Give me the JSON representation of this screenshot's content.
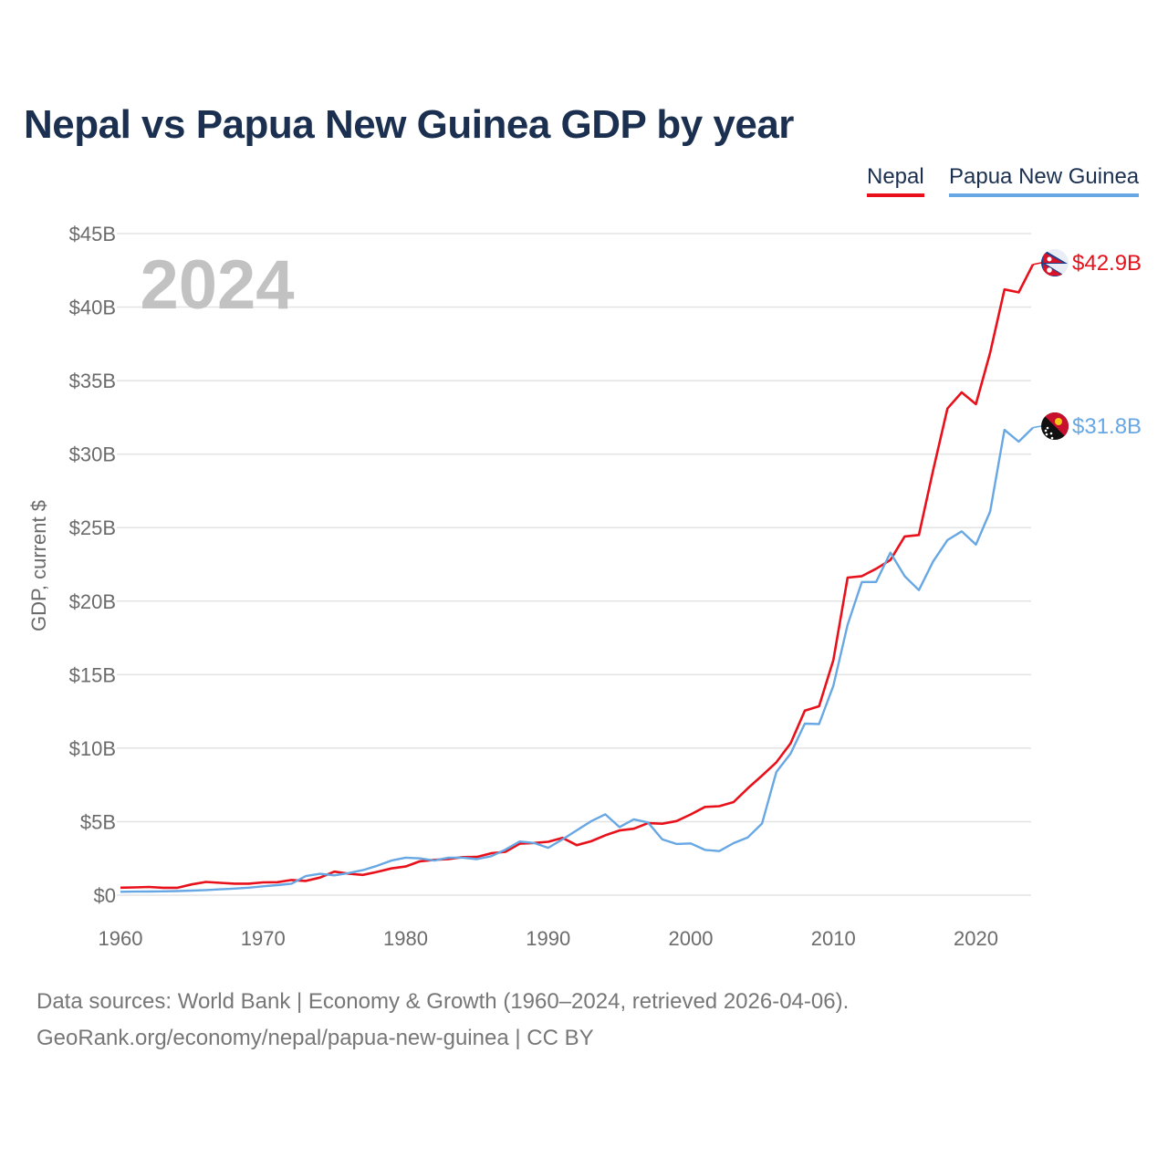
{
  "title": "Nepal vs Papua New Guinea GDP by year",
  "legend": [
    {
      "label": "Nepal",
      "color": "#e8101a"
    },
    {
      "label": "Papua New Guinea",
      "color": "#67a7e3"
    }
  ],
  "footer": {
    "source": "Data sources: World Bank | Economy & Growth (1960–2024, retrieved 2026-04-06).",
    "site": "GeoRank.org/economy/nepal/papua-new-guinea | CC BY"
  },
  "chart_data": {
    "type": "line",
    "title": "Nepal vs Papua New Guinea GDP by year",
    "xlabel": "",
    "ylabel": "GDP, current $",
    "year_label": "2024",
    "xlim": [
      1960,
      2024
    ],
    "ylim": [
      0,
      45
    ],
    "unit": "billion USD",
    "x_ticks": [
      1960,
      1970,
      1980,
      1990,
      2000,
      2010,
      2020
    ],
    "y_ticks": [
      {
        "value": 0,
        "label": "$0"
      },
      {
        "value": 5,
        "label": "$5B"
      },
      {
        "value": 10,
        "label": "$10B"
      },
      {
        "value": 15,
        "label": "$15B"
      },
      {
        "value": 20,
        "label": "$20B"
      },
      {
        "value": 25,
        "label": "$25B"
      },
      {
        "value": 30,
        "label": "$30B"
      },
      {
        "value": 35,
        "label": "$35B"
      },
      {
        "value": 40,
        "label": "$40B"
      },
      {
        "value": 45,
        "label": "$45B"
      }
    ],
    "grid": true,
    "legend_position": "top-right",
    "x": [
      1960,
      1961,
      1962,
      1963,
      1964,
      1965,
      1966,
      1967,
      1968,
      1969,
      1970,
      1971,
      1972,
      1973,
      1974,
      1975,
      1976,
      1977,
      1978,
      1979,
      1980,
      1981,
      1982,
      1983,
      1984,
      1985,
      1986,
      1987,
      1988,
      1989,
      1990,
      1991,
      1992,
      1993,
      1994,
      1995,
      1996,
      1997,
      1998,
      1999,
      2000,
      2001,
      2002,
      2003,
      2004,
      2005,
      2006,
      2007,
      2008,
      2009,
      2010,
      2011,
      2012,
      2013,
      2014,
      2015,
      2016,
      2017,
      2018,
      2019,
      2020,
      2021,
      2022,
      2023,
      2024
    ],
    "series": [
      {
        "name": "Nepal",
        "color": "#e8101a",
        "end_label": "$42.9B",
        "flag": "nepal-flag-icon",
        "values": [
          0.51,
          0.53,
          0.56,
          0.5,
          0.5,
          0.73,
          0.9,
          0.84,
          0.78,
          0.78,
          0.87,
          0.88,
          1.03,
          0.97,
          1.2,
          1.6,
          1.46,
          1.38,
          1.58,
          1.82,
          1.95,
          2.3,
          2.4,
          2.45,
          2.59,
          2.6,
          2.85,
          2.95,
          3.5,
          3.55,
          3.63,
          3.9,
          3.4,
          3.66,
          4.07,
          4.4,
          4.52,
          4.9,
          4.86,
          5.04,
          5.49,
          6.0,
          6.05,
          6.33,
          7.27,
          8.13,
          9.04,
          10.33,
          12.55,
          12.85,
          16.0,
          21.6,
          21.7,
          22.2,
          22.8,
          24.4,
          24.5,
          28.9,
          33.1,
          34.2,
          33.4,
          36.9,
          41.2,
          41.0,
          42.9
        ]
      },
      {
        "name": "Papua New Guinea",
        "color": "#67a7e3",
        "end_label": "$31.8B",
        "flag": "papua-new-guinea-flag-icon",
        "values": [
          0.23,
          0.24,
          0.25,
          0.26,
          0.28,
          0.31,
          0.35,
          0.4,
          0.45,
          0.51,
          0.6,
          0.68,
          0.78,
          1.3,
          1.45,
          1.35,
          1.5,
          1.7,
          2.0,
          2.35,
          2.55,
          2.5,
          2.35,
          2.55,
          2.55,
          2.45,
          2.65,
          3.1,
          3.65,
          3.55,
          3.22,
          3.79,
          4.41,
          5.02,
          5.5,
          4.63,
          5.16,
          4.95,
          3.79,
          3.48,
          3.52,
          3.08,
          3.0,
          3.54,
          3.93,
          4.87,
          8.38,
          9.63,
          11.67,
          11.64,
          14.25,
          18.4,
          21.3,
          21.3,
          23.3,
          21.7,
          20.75,
          22.7,
          24.15,
          24.75,
          23.85,
          26.1,
          31.65,
          30.85,
          31.8
        ]
      }
    ]
  }
}
